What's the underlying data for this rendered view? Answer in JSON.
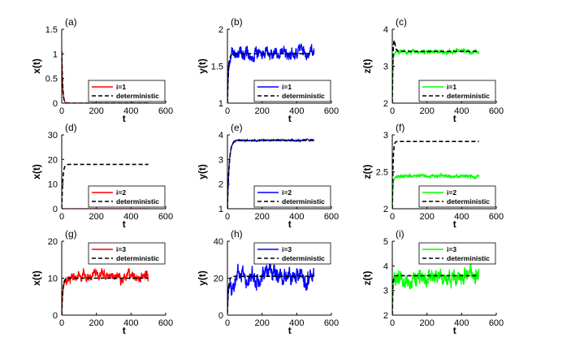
{
  "colors": {
    "red": "#ff0000",
    "blue": "#0000ff",
    "green": "#00ff00",
    "axis": "#000000",
    "deterministic": "#000000"
  },
  "chart_data": [
    {
      "type": "line",
      "label": "(a)",
      "xlabel": "t",
      "ylabel": "x(t)",
      "xlim": [
        0,
        600
      ],
      "ylim": [
        0,
        1.5
      ],
      "xticks": [
        "0",
        "200",
        "400",
        "600"
      ],
      "xtick_values": [
        0,
        200,
        400,
        600
      ],
      "yticks": [
        "0",
        "0.5",
        "1",
        "1.5"
      ],
      "ytick_values": [
        0,
        0.5,
        1,
        1.5
      ],
      "legend": "bottom-right",
      "series": [
        {
          "name": "i=1",
          "color": "red",
          "style": "solid",
          "kind": "decay",
          "start": 1.05,
          "level": 0.0,
          "tau": 5,
          "noise": 0.0,
          "t_end": 500
        },
        {
          "name": "deterministic",
          "color": "black",
          "style": "dashed",
          "kind": "decay",
          "start": 1.05,
          "level": 0.0,
          "tau": 5,
          "t_end": 500
        }
      ]
    },
    {
      "type": "line",
      "label": "(b)",
      "xlabel": "t",
      "ylabel": "y(t)",
      "xlim": [
        0,
        600
      ],
      "ylim": [
        1,
        2
      ],
      "xticks": [
        "0",
        "200",
        "400",
        "600"
      ],
      "xtick_values": [
        0,
        200,
        400,
        600
      ],
      "yticks": [
        "1",
        "1.5",
        "2"
      ],
      "ytick_values": [
        1,
        1.5,
        2
      ],
      "legend": "bottom-right",
      "series": [
        {
          "name": "i=1",
          "color": "blue",
          "style": "solid",
          "kind": "rise",
          "start": 1.0,
          "level": 1.68,
          "tau": 6,
          "noise": 0.14,
          "t_end": 500
        },
        {
          "name": "deterministic",
          "color": "black",
          "style": "dashed",
          "kind": "rise",
          "start": 1.0,
          "level": 1.67,
          "tau": 6,
          "t_end": 500
        }
      ]
    },
    {
      "type": "line",
      "label": "(c)",
      "xlabel": "t",
      "ylabel": "z(t)",
      "xlim": [
        0,
        600
      ],
      "ylim": [
        2,
        4
      ],
      "xticks": [
        "0",
        "200",
        "400",
        "600"
      ],
      "xtick_values": [
        0,
        200,
        400,
        600
      ],
      "yticks": [
        "2",
        "3",
        "4"
      ],
      "ytick_values": [
        2,
        3,
        4
      ],
      "legend": "bottom-right",
      "series": [
        {
          "name": "i=1",
          "color": "green",
          "style": "solid",
          "kind": "rise",
          "start": 2.0,
          "level": 3.4,
          "tau": 3,
          "noise": 0.08,
          "t_end": 500
        },
        {
          "name": "deterministic",
          "color": "black",
          "style": "dashed",
          "kind": "overshoot",
          "start": 2.0,
          "level": 3.4,
          "peak": 3.75,
          "tau": 3,
          "t_end": 500
        }
      ]
    },
    {
      "type": "line",
      "label": "(d)",
      "xlabel": "t",
      "ylabel": "x(t)",
      "xlim": [
        0,
        600
      ],
      "ylim": [
        0,
        30
      ],
      "xticks": [
        "0",
        "200",
        "400",
        "600"
      ],
      "xtick_values": [
        0,
        200,
        400,
        600
      ],
      "yticks": [
        "0",
        "10",
        "20",
        "30"
      ],
      "ytick_values": [
        0,
        10,
        20,
        30
      ],
      "legend": "bottom-right",
      "series": [
        {
          "name": "i=2",
          "color": "red",
          "style": "solid",
          "kind": "decay",
          "start": 0.3,
          "level": 0.0,
          "tau": 3,
          "noise": 0.0,
          "t_end": 500
        },
        {
          "name": "deterministic",
          "color": "black",
          "style": "dashed",
          "kind": "rise",
          "start": 0.0,
          "level": 18.0,
          "tau": 6,
          "t_end": 500
        }
      ]
    },
    {
      "type": "line",
      "label": "(e)",
      "xlabel": "t",
      "ylabel": "y(t)",
      "xlim": [
        0,
        600
      ],
      "ylim": [
        1,
        4
      ],
      "xticks": [
        "0",
        "200",
        "400",
        "600"
      ],
      "xtick_values": [
        0,
        200,
        400,
        600
      ],
      "yticks": [
        "1",
        "2",
        "3",
        "4"
      ],
      "ytick_values": [
        1,
        2,
        3,
        4
      ],
      "legend": "bottom-right",
      "series": [
        {
          "name": "i=2",
          "color": "blue",
          "style": "solid",
          "kind": "rise",
          "start": 1.0,
          "level": 3.78,
          "tau": 10,
          "noise": 0.05,
          "t_end": 500
        },
        {
          "name": "deterministic",
          "color": "black",
          "style": "dashed",
          "kind": "rise",
          "start": 1.0,
          "level": 3.77,
          "tau": 10,
          "t_end": 500
        }
      ]
    },
    {
      "type": "line",
      "label": "(f)",
      "xlabel": "t",
      "ylabel": "z(t)",
      "xlim": [
        0,
        600
      ],
      "ylim": [
        2,
        3
      ],
      "xticks": [
        "0",
        "200",
        "400",
        "600"
      ],
      "xtick_values": [
        0,
        200,
        400,
        600
      ],
      "yticks": [
        "2",
        "2.5",
        "3"
      ],
      "ytick_values": [
        2,
        2.5,
        3
      ],
      "legend": "bottom-right",
      "series": [
        {
          "name": "i=2",
          "color": "green",
          "style": "solid",
          "kind": "rise",
          "start": 2.0,
          "level": 2.44,
          "tau": 4,
          "noise": 0.03,
          "t_end": 500
        },
        {
          "name": "deterministic",
          "color": "black",
          "style": "dashed",
          "kind": "rise",
          "start": 2.0,
          "level": 2.91,
          "tau": 4,
          "t_end": 500
        }
      ]
    },
    {
      "type": "line",
      "label": "(g)",
      "xlabel": "t",
      "ylabel": "x(t)",
      "xlim": [
        0,
        600
      ],
      "ylim": [
        0,
        20
      ],
      "xticks": [
        "0",
        "200",
        "400",
        "600"
      ],
      "xtick_values": [
        0,
        200,
        400,
        600
      ],
      "yticks": [
        "0",
        "10",
        "20"
      ],
      "ytick_values": [
        0,
        10,
        20
      ],
      "legend": "top-right",
      "series": [
        {
          "name": "i=3",
          "color": "red",
          "style": "solid",
          "kind": "rise",
          "start": 0.0,
          "level": 10.5,
          "tau": 6,
          "noise": 2.2,
          "t_end": 500
        },
        {
          "name": "deterministic",
          "color": "black",
          "style": "dashed",
          "kind": "rise",
          "start": 0.0,
          "level": 10.0,
          "tau": 6,
          "t_end": 500
        }
      ]
    },
    {
      "type": "line",
      "label": "(h)",
      "xlabel": "t",
      "ylabel": "y(t)",
      "xlim": [
        0,
        600
      ],
      "ylim": [
        0,
        40
      ],
      "xticks": [
        "0",
        "200",
        "400",
        "600"
      ],
      "xtick_values": [
        0,
        200,
        400,
        600
      ],
      "yticks": [
        "0",
        "20",
        "40"
      ],
      "ytick_values": [
        0,
        20,
        40
      ],
      "legend": "top-right",
      "series": [
        {
          "name": "i=3",
          "color": "blue",
          "style": "solid",
          "kind": "rise",
          "start": 1.0,
          "level": 21.0,
          "tau": 6,
          "noise": 8.0,
          "t_end": 500
        },
        {
          "name": "deterministic",
          "color": "black",
          "style": "dashed",
          "kind": "rise",
          "start": 1.0,
          "level": 21.0,
          "tau": 6,
          "t_end": 500
        }
      ]
    },
    {
      "type": "line",
      "label": "(i)",
      "xlabel": "t",
      "ylabel": "z(t)",
      "xlim": [
        0,
        600
      ],
      "ylim": [
        2,
        5
      ],
      "xticks": [
        "0",
        "200",
        "400",
        "600"
      ],
      "xtick_values": [
        0,
        200,
        400,
        600
      ],
      "yticks": [
        "2",
        "3",
        "4",
        "5"
      ],
      "ytick_values": [
        2,
        3,
        4,
        5
      ],
      "legend": "top-right",
      "series": [
        {
          "name": "i=3",
          "color": "green",
          "style": "solid",
          "kind": "rise",
          "start": 2.0,
          "level": 3.5,
          "tau": 3,
          "noise": 0.55,
          "t_end": 500
        },
        {
          "name": "deterministic",
          "color": "black",
          "style": "dashed",
          "kind": "rise",
          "start": 2.0,
          "level": 3.6,
          "tau": 3,
          "t_end": 500
        }
      ]
    }
  ]
}
